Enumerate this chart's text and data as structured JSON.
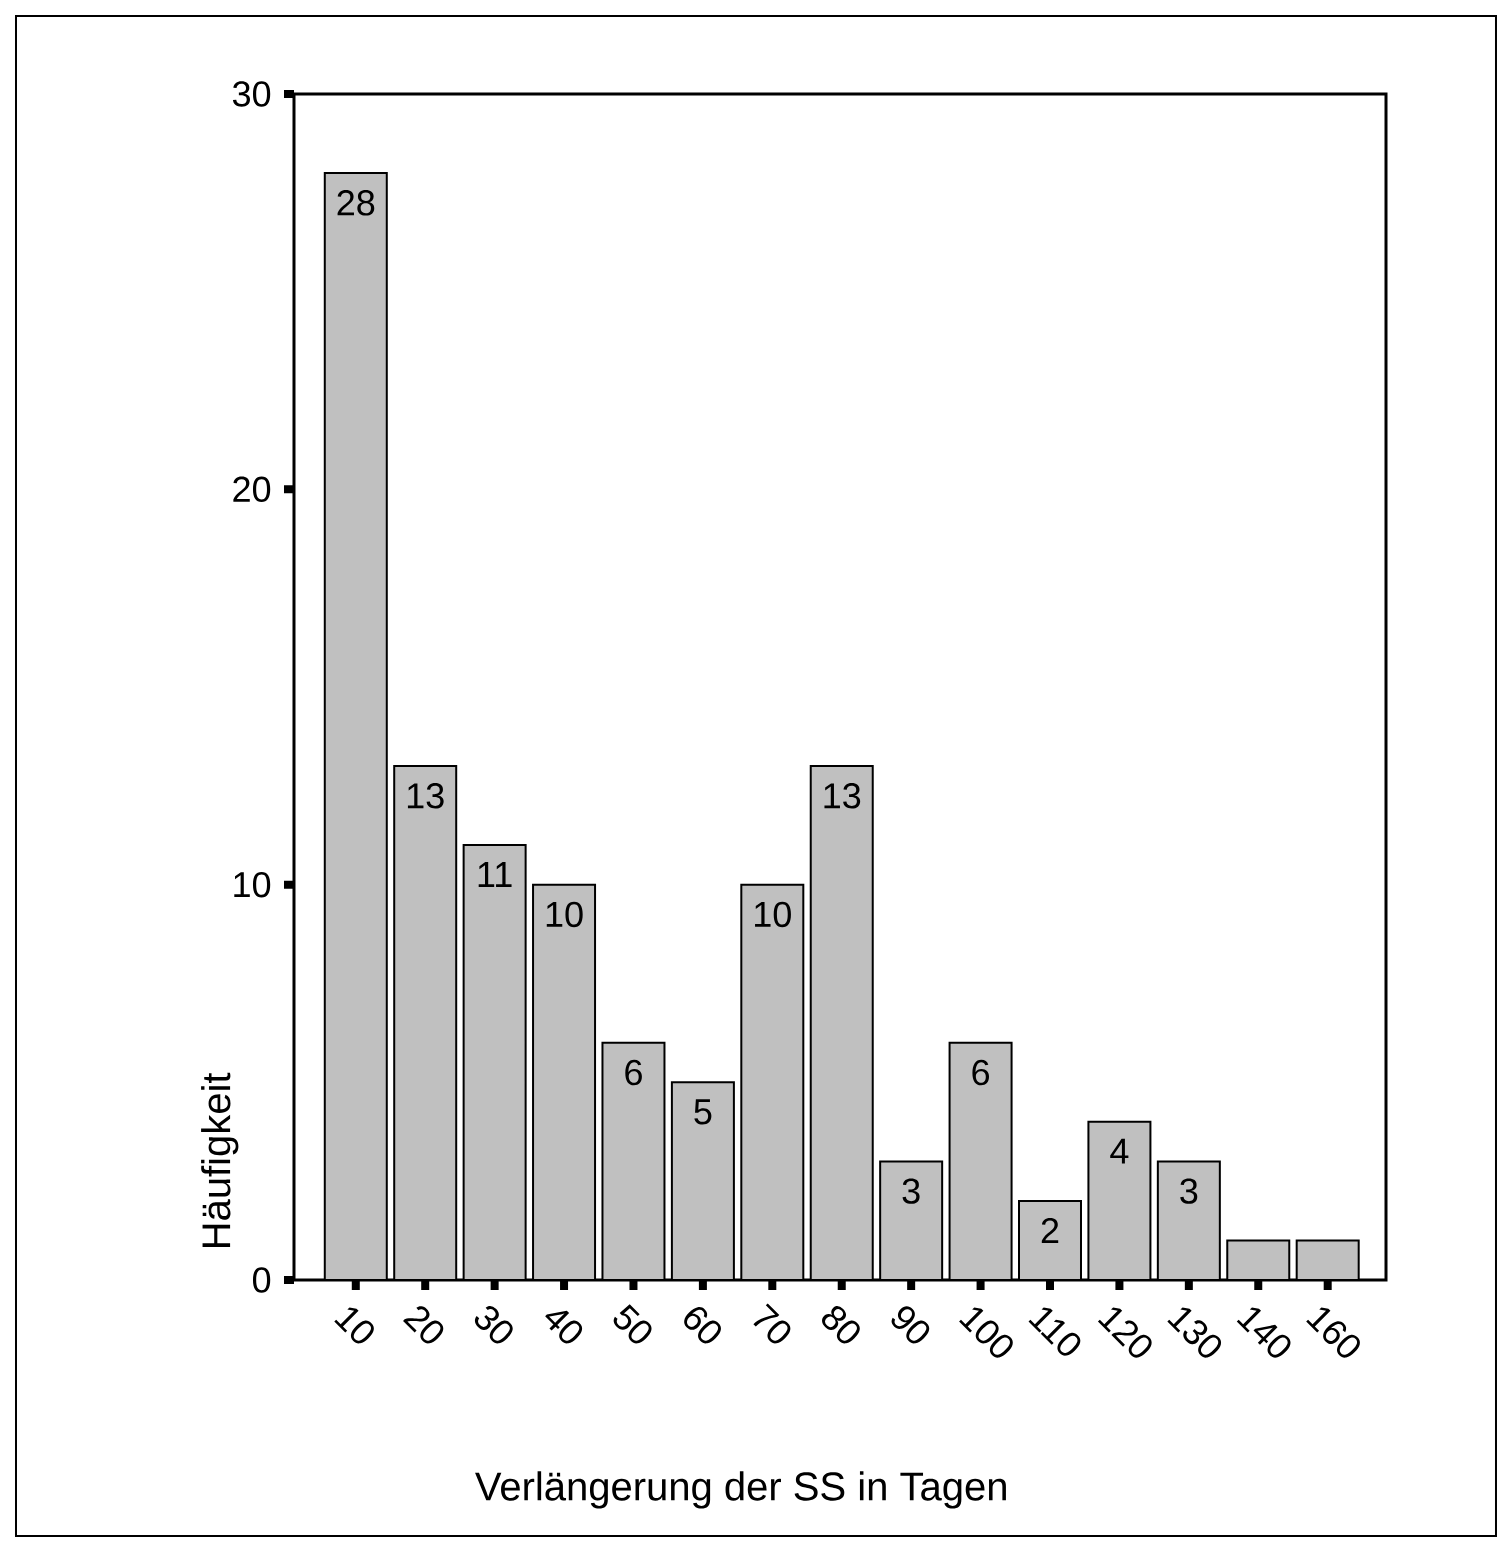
{
  "chart_data": {
    "type": "bar",
    "xlabel": "Verlängerung der SS in Tagen",
    "ylabel": "Häufigkeit",
    "categories": [
      "10",
      "20",
      "30",
      "40",
      "50",
      "60",
      "70",
      "80",
      "90",
      "100",
      "110",
      "120",
      "130",
      "140",
      "160"
    ],
    "values": [
      28,
      13,
      11,
      10,
      6,
      5,
      10,
      13,
      3,
      6,
      2,
      4,
      3,
      1,
      1
    ],
    "value_labels": [
      "28",
      "13",
      "11",
      "10",
      "6",
      "5",
      "10",
      "13",
      "3",
      "6",
      "2",
      "4",
      "3",
      null,
      null
    ],
    "color": "#c0c0c0",
    "ylim": [
      0,
      30
    ],
    "yticks": [
      0,
      10,
      20,
      30
    ]
  }
}
